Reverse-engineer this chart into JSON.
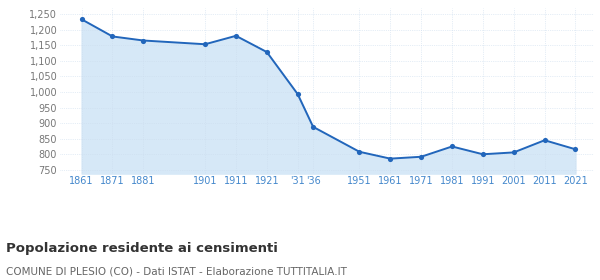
{
  "years": [
    1861,
    1871,
    1881,
    1901,
    1911,
    1921,
    1931,
    1936,
    1951,
    1961,
    1971,
    1981,
    1991,
    2001,
    2011,
    2021
  ],
  "population": [
    1233,
    1178,
    1165,
    1153,
    1180,
    1128,
    993,
    888,
    808,
    786,
    792,
    825,
    800,
    806,
    845,
    816
  ],
  "line_color": "#2266bb",
  "fill_color": "#d6e8f7",
  "marker_color": "#2266bb",
  "grid_color": "#ccddee",
  "background_color": "#ffffff",
  "title": "Popolazione residente ai censimenti",
  "subtitle": "COMUNE DI PLESIO (CO) - Dati ISTAT - Elaborazione TUTTITALIA.IT",
  "title_fontsize": 9.5,
  "subtitle_fontsize": 7.5,
  "ylabel_values": [
    750,
    800,
    850,
    900,
    950,
    1000,
    1050,
    1100,
    1150,
    1200,
    1250
  ],
  "ylim": [
    738,
    1268
  ],
  "xlim": [
    1854,
    2027
  ],
  "tick_label_color": "#4488cc",
  "ytick_label_color": "#777777"
}
